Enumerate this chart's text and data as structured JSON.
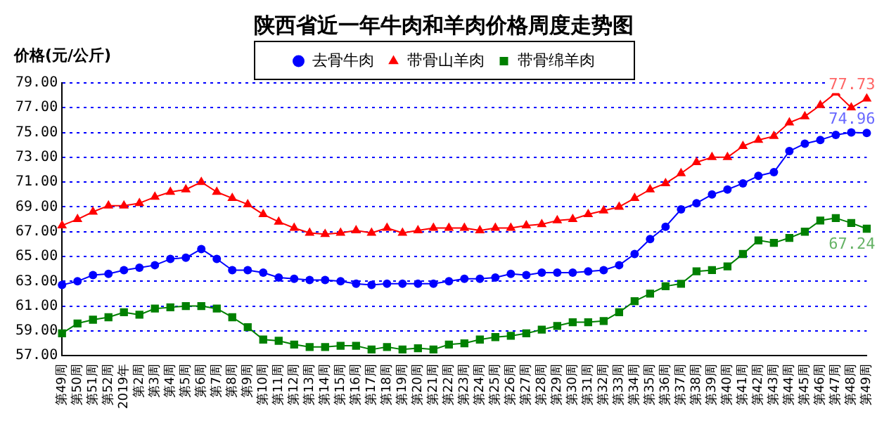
{
  "chart_data": {
    "type": "line",
    "title": "陕西省近一年牛肉和羊肉价格周度走势图",
    "ylabel": "价格(元/公斤)",
    "categories": [
      "第49周",
      "第50周",
      "第51周",
      "第52周",
      "2019年",
      "第2周",
      "第3周",
      "第4周",
      "第5周",
      "第6周",
      "第7周",
      "第8周",
      "第9周",
      "第10周",
      "第11周",
      "第12周",
      "第13周",
      "第14周",
      "第15周",
      "第16周",
      "第17周",
      "第18周",
      "第19周",
      "第20周",
      "第21周",
      "第22周",
      "第23周",
      "第24周",
      "第25周",
      "第26周",
      "第27周",
      "第28周",
      "第29周",
      "第30周",
      "第31周",
      "第32周",
      "第33周",
      "第34周",
      "第35周",
      "第36周",
      "第37周",
      "第38周",
      "第39周",
      "第40周",
      "第41周",
      "第42周",
      "第43周",
      "第44周",
      "第45周",
      "第46周",
      "第47周",
      "第48周",
      "第49周"
    ],
    "series": [
      {
        "name": "去骨牛肉",
        "color": "#0000ff",
        "marker": "circle",
        "values": [
          62.7,
          63.0,
          63.5,
          63.6,
          63.9,
          64.1,
          64.3,
          64.8,
          64.9,
          65.6,
          64.8,
          63.9,
          63.9,
          63.7,
          63.3,
          63.2,
          63.1,
          63.1,
          63.0,
          62.8,
          62.7,
          62.8,
          62.8,
          62.8,
          62.8,
          63.0,
          63.2,
          63.2,
          63.3,
          63.6,
          63.5,
          63.7,
          63.7,
          63.7,
          63.8,
          63.9,
          64.3,
          65.2,
          66.4,
          67.4,
          68.8,
          69.3,
          70.0,
          70.4,
          70.9,
          71.5,
          71.8,
          73.5,
          74.1,
          74.4,
          74.8,
          75.0,
          74.96
        ],
        "value_labels": [
          null,
          null,
          null,
          null,
          null,
          null,
          null,
          null,
          null,
          null,
          null,
          null,
          null,
          null,
          null,
          null,
          null,
          null,
          null,
          null,
          null,
          null,
          null,
          null,
          null,
          null,
          null,
          null,
          null,
          null,
          null,
          null,
          null,
          null,
          null,
          null,
          null,
          null,
          null,
          null,
          null,
          null,
          null,
          null,
          null,
          null,
          null,
          null,
          null,
          null,
          null,
          null,
          "74.96"
        ]
      },
      {
        "name": "带骨山羊肉",
        "color": "#ff0000",
        "marker": "triangle",
        "values": [
          67.5,
          68.0,
          68.6,
          69.1,
          69.1,
          69.3,
          69.8,
          70.2,
          70.4,
          71.0,
          70.2,
          69.7,
          69.2,
          68.4,
          67.8,
          67.3,
          66.9,
          66.8,
          66.9,
          67.1,
          66.9,
          67.3,
          66.9,
          67.1,
          67.3,
          67.3,
          67.3,
          67.1,
          67.3,
          67.3,
          67.5,
          67.6,
          67.9,
          68.0,
          68.4,
          68.7,
          69.0,
          69.7,
          70.4,
          70.9,
          71.7,
          72.6,
          73.0,
          73.0,
          73.9,
          74.4,
          74.7,
          75.8,
          76.3,
          77.2,
          78.2,
          77.0,
          77.73
        ],
        "value_labels": [
          null,
          null,
          null,
          null,
          null,
          null,
          null,
          null,
          null,
          null,
          null,
          null,
          null,
          null,
          null,
          null,
          null,
          null,
          null,
          null,
          null,
          null,
          null,
          null,
          null,
          null,
          null,
          null,
          null,
          null,
          null,
          null,
          null,
          null,
          null,
          null,
          null,
          null,
          null,
          null,
          null,
          null,
          null,
          null,
          null,
          null,
          null,
          null,
          null,
          null,
          null,
          null,
          "77.73"
        ]
      },
      {
        "name": "带骨绵羊肉",
        "color": "#008000",
        "marker": "square",
        "values": [
          58.8,
          59.6,
          59.9,
          60.1,
          60.5,
          60.3,
          60.8,
          60.9,
          61.0,
          61.0,
          60.8,
          60.1,
          59.3,
          58.3,
          58.2,
          57.9,
          57.7,
          57.7,
          57.8,
          57.8,
          57.5,
          57.7,
          57.5,
          57.6,
          57.5,
          57.9,
          58.0,
          58.3,
          58.5,
          58.6,
          58.8,
          59.1,
          59.4,
          59.7,
          59.7,
          59.8,
          60.5,
          61.4,
          62.0,
          62.6,
          62.8,
          63.8,
          63.9,
          64.2,
          65.2,
          66.3,
          66.1,
          66.5,
          67.0,
          67.9,
          68.1,
          67.7,
          67.24
        ],
        "value_labels": [
          null,
          null,
          null,
          null,
          null,
          null,
          null,
          null,
          null,
          null,
          null,
          null,
          null,
          null,
          null,
          null,
          null,
          null,
          null,
          null,
          null,
          null,
          null,
          null,
          null,
          null,
          null,
          null,
          null,
          null,
          null,
          null,
          null,
          null,
          null,
          null,
          null,
          null,
          null,
          null,
          null,
          null,
          null,
          null,
          null,
          null,
          null,
          null,
          null,
          null,
          null,
          null,
          "67.24"
        ]
      }
    ],
    "ylim": [
      57,
      79
    ],
    "yticks": [
      {
        "value": 57,
        "label": "57.00"
      },
      {
        "value": 59,
        "label": "59.00"
      },
      {
        "value": 61,
        "label": "61.00"
      },
      {
        "value": 63,
        "label": "63.00"
      },
      {
        "value": 65,
        "label": "65.00"
      },
      {
        "value": 67,
        "label": "67.00"
      },
      {
        "value": 69,
        "label": "69.00"
      },
      {
        "value": 71,
        "label": "71.00"
      },
      {
        "value": 73,
        "label": "73.00"
      },
      {
        "value": 75,
        "label": "75.00"
      },
      {
        "value": 77,
        "label": "77.00"
      },
      {
        "value": 79,
        "label": "79.00"
      }
    ],
    "grid": "y",
    "legend": "top right",
    "line_style": "solid"
  }
}
